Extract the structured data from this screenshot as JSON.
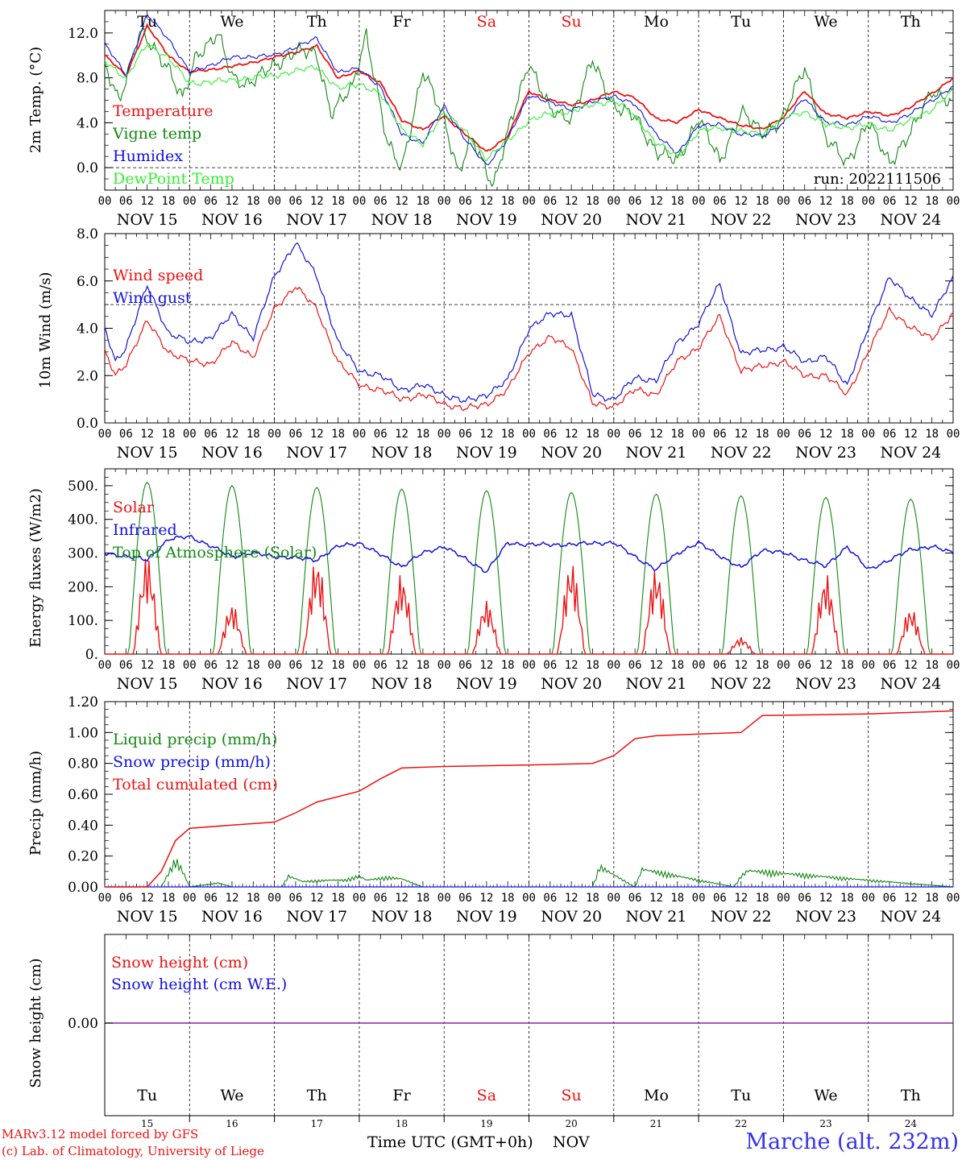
{
  "colors": {
    "red": "#ee1111",
    "dark_green": "#118811",
    "blue": "#1111dd",
    "light_green": "#33ee33",
    "purple": "#882299"
  },
  "days_top": [
    {
      "label": "Tu",
      "weekend": false
    },
    {
      "label": "We",
      "weekend": false
    },
    {
      "label": "Th",
      "weekend": false
    },
    {
      "label": "Fr",
      "weekend": false
    },
    {
      "label": "Sa",
      "weekend": true
    },
    {
      "label": "Su",
      "weekend": true
    },
    {
      "label": "Mo",
      "weekend": false
    },
    {
      "label": "Tu",
      "weekend": false
    },
    {
      "label": "We",
      "weekend": false
    },
    {
      "label": "Th",
      "weekend": false
    }
  ],
  "date_labels": [
    "NOV 15",
    "NOV 16",
    "NOV 17",
    "NOV 18",
    "NOV 19",
    "NOV 20",
    "NOV 21",
    "NOV 22",
    "NOV 23",
    "NOV 24"
  ],
  "hour_labels": [
    "00",
    "06",
    "12",
    "18"
  ],
  "day_numbers": [
    "15",
    "16",
    "17",
    "18",
    "19",
    "20",
    "21",
    "22",
    "23",
    "24"
  ],
  "footer": {
    "credit_line1": "MARv3.12 model forced by GFS",
    "credit_line2": "(c) Lab. of Climatology, University of Liege",
    "xlabel": "Time UTC (GMT+0h)",
    "month": "NOV",
    "station": "Marche (alt. 232m)"
  },
  "chart_data": [
    {
      "type": "line",
      "ylabel": "2m Temp. (°C)",
      "ylim": [
        -2.0,
        14.0
      ],
      "yticks": [
        "0.0",
        "4.0",
        "8.0",
        "12.0"
      ],
      "reference_line": 0.0,
      "run_label": "run: 2022111506",
      "x_unit": "hours since NOV 15 00 UTC",
      "series": [
        {
          "name": "Temperature",
          "color": "red",
          "x": [
            0,
            6,
            12,
            18,
            24,
            36,
            48,
            60,
            66,
            72,
            78,
            84,
            90,
            96,
            102,
            108,
            114,
            120,
            126,
            132,
            138,
            144,
            150,
            156,
            162,
            168,
            174,
            180,
            186,
            192,
            198,
            204,
            210,
            216,
            222,
            228,
            234,
            240
          ],
          "values": [
            10.0,
            8.2,
            12.6,
            10.0,
            8.5,
            9.0,
            9.8,
            10.8,
            8.0,
            8.6,
            7.6,
            4.2,
            3.4,
            4.6,
            3.0,
            1.4,
            2.8,
            6.8,
            6.0,
            5.6,
            6.0,
            6.8,
            6.2,
            4.4,
            4.0,
            5.2,
            4.4,
            3.8,
            3.4,
            4.5,
            6.8,
            4.8,
            4.4,
            5.0,
            4.6,
            5.4,
            6.6,
            8.0
          ]
        },
        {
          "name": "Vigne temp",
          "color": "dark_green",
          "x": [
            0,
            4,
            10,
            14,
            18,
            22,
            26,
            32,
            36,
            40,
            48,
            54,
            60,
            64,
            70,
            74,
            80,
            84,
            90,
            96,
            100,
            104,
            110,
            114,
            120,
            126,
            132,
            138,
            144,
            150,
            156,
            162,
            168,
            174,
            180,
            186,
            192,
            198,
            204,
            210,
            216,
            222,
            228,
            234,
            240
          ],
          "values": [
            9.0,
            6.0,
            12.0,
            10.5,
            9.0,
            6.0,
            10.0,
            12.0,
            8.0,
            7.5,
            9.0,
            10.5,
            10.0,
            5.0,
            7.0,
            12.0,
            2.0,
            0.0,
            8.5,
            4.5,
            -0.5,
            2.5,
            -1.5,
            3.0,
            9.5,
            5.0,
            4.5,
            9.5,
            5.5,
            4.5,
            1.5,
            0.5,
            4.5,
            0.5,
            5.0,
            3.0,
            4.5,
            9.0,
            2.5,
            0.5,
            4.0,
            0.5,
            3.0,
            7.0,
            5.5
          ]
        },
        {
          "name": "Humidex",
          "color": "blue",
          "x": [
            0,
            6,
            12,
            18,
            24,
            36,
            48,
            60,
            66,
            72,
            78,
            84,
            90,
            96,
            102,
            108,
            114,
            120,
            126,
            132,
            138,
            144,
            150,
            156,
            162,
            168,
            174,
            180,
            186,
            192,
            198,
            204,
            210,
            216,
            222,
            228,
            234,
            240
          ],
          "values": [
            11.0,
            8.3,
            13.6,
            11.5,
            8.5,
            9.8,
            10.0,
            11.5,
            8.5,
            8.8,
            7.2,
            3.0,
            2.2,
            5.5,
            2.5,
            0.2,
            2.5,
            6.5,
            5.8,
            5.2,
            5.8,
            6.4,
            5.6,
            3.0,
            1.2,
            3.8,
            3.8,
            3.0,
            2.8,
            4.0,
            6.2,
            4.0,
            3.8,
            4.6,
            4.0,
            4.8,
            6.0,
            7.2
          ]
        },
        {
          "name": "DewPoint Temp",
          "color": "light_green",
          "x": [
            0,
            6,
            12,
            18,
            24,
            36,
            48,
            60,
            66,
            72,
            78,
            84,
            90,
            96,
            102,
            108,
            114,
            120,
            126,
            132,
            138,
            144,
            150,
            156,
            162,
            168,
            174,
            180,
            186,
            192,
            198,
            204,
            210,
            216,
            222,
            228,
            234,
            240
          ],
          "values": [
            9.5,
            8.0,
            11.0,
            9.8,
            7.5,
            7.8,
            8.2,
            9.0,
            7.0,
            7.5,
            6.5,
            3.5,
            2.0,
            5.0,
            3.2,
            0.8,
            2.4,
            4.2,
            4.8,
            5.0,
            5.6,
            6.0,
            4.6,
            2.2,
            1.0,
            3.2,
            3.6,
            3.2,
            3.0,
            4.4,
            5.0,
            3.8,
            3.6,
            3.8,
            3.4,
            4.2,
            5.2,
            6.8
          ]
        }
      ]
    },
    {
      "type": "line",
      "ylabel": "10m Wind (m/s)",
      "ylim": [
        0.0,
        8.0
      ],
      "yticks": [
        "0.0",
        "2.0",
        "4.0",
        "6.0",
        "8.0"
      ],
      "reference_line": 5.0,
      "x_unit": "hours since NOV 15 00 UTC",
      "series": [
        {
          "name": "Wind speed",
          "color": "red",
          "x": [
            0,
            3,
            6,
            12,
            18,
            24,
            30,
            36,
            42,
            48,
            54,
            60,
            66,
            72,
            78,
            84,
            90,
            96,
            102,
            108,
            114,
            120,
            126,
            132,
            138,
            144,
            150,
            156,
            162,
            168,
            174,
            180,
            186,
            192,
            198,
            204,
            210,
            216,
            222,
            228,
            234,
            240
          ],
          "values": [
            3.0,
            2.0,
            2.5,
            4.3,
            3.0,
            2.6,
            2.5,
            3.4,
            2.8,
            4.8,
            5.8,
            4.8,
            2.6,
            1.6,
            1.4,
            1.0,
            1.2,
            0.8,
            0.6,
            0.8,
            1.4,
            3.0,
            3.6,
            3.2,
            0.8,
            0.7,
            1.4,
            1.2,
            2.6,
            3.2,
            4.5,
            2.2,
            2.4,
            2.6,
            2.0,
            2.0,
            1.2,
            3.0,
            4.8,
            4.0,
            3.6,
            4.6
          ]
        },
        {
          "name": "Wind gust",
          "color": "blue",
          "x": [
            0,
            3,
            6,
            12,
            18,
            24,
            30,
            36,
            42,
            48,
            54,
            60,
            66,
            72,
            78,
            84,
            90,
            96,
            102,
            108,
            114,
            120,
            126,
            132,
            138,
            144,
            150,
            156,
            162,
            168,
            174,
            180,
            186,
            192,
            198,
            204,
            210,
            216,
            222,
            228,
            234,
            240
          ],
          "values": [
            4.0,
            2.6,
            3.2,
            5.8,
            3.8,
            3.4,
            3.6,
            4.6,
            3.6,
            6.2,
            7.6,
            6.2,
            3.4,
            2.2,
            2.0,
            1.4,
            1.6,
            1.2,
            0.9,
            1.2,
            1.8,
            4.0,
            4.6,
            4.6,
            1.2,
            1.0,
            1.9,
            1.8,
            3.4,
            4.2,
            5.9,
            2.9,
            3.1,
            3.2,
            2.6,
            2.8,
            1.6,
            4.0,
            6.2,
            5.2,
            4.6,
            6.1
          ]
        }
      ]
    },
    {
      "type": "line",
      "ylabel": "Energy fluxes (W/m2)",
      "ylim": [
        0,
        550
      ],
      "yticks": [
        "0.",
        "100.",
        "200.",
        "300.",
        "400.",
        "500."
      ],
      "x_unit": "hours since NOV 15 00 UTC",
      "solar_day_peaks": [
        300,
        150,
        290,
        240,
        160,
        280,
        260,
        50,
        240,
        140
      ],
      "toa_day_peaks": [
        510,
        500,
        495,
        490,
        485,
        480,
        475,
        470,
        465,
        460
      ],
      "series": [
        {
          "name": "Solar",
          "color": "red"
        },
        {
          "name": "Infrared",
          "color": "blue",
          "x": [
            0,
            12,
            18,
            24,
            36,
            42,
            48,
            60,
            66,
            72,
            84,
            90,
            96,
            108,
            114,
            120,
            132,
            138,
            144,
            156,
            162,
            168,
            180,
            186,
            192,
            204,
            210,
            216,
            228,
            234,
            240
          ],
          "values": [
            300,
            280,
            340,
            350,
            290,
            300,
            290,
            280,
            320,
            330,
            260,
            300,
            320,
            245,
            330,
            325,
            325,
            330,
            330,
            250,
            300,
            330,
            255,
            310,
            300,
            260,
            320,
            250,
            310,
            320,
            300
          ]
        },
        {
          "name": "Top of Atmosphere (Solar)",
          "color": "dark_green"
        }
      ]
    },
    {
      "type": "line",
      "ylabel": "Precip (mm/h)",
      "ylim": [
        0.0,
        1.2
      ],
      "yticks": [
        "0.00",
        "0.20",
        "0.40",
        "0.60",
        "0.80",
        "1.00",
        "1.20"
      ],
      "x_unit": "hours since NOV 15 00 UTC",
      "series": [
        {
          "name": "Liquid precip (mm/h)",
          "color": "dark_green",
          "x": [
            0,
            16,
            20,
            22,
            24,
            32,
            36,
            50,
            52,
            56,
            64,
            68,
            72,
            74,
            80,
            84,
            90,
            138,
            140,
            150,
            152,
            178,
            180,
            182,
            240
          ],
          "values": [
            0.0,
            0.0,
            0.2,
            0.12,
            0.0,
            0.03,
            0.0,
            0.0,
            0.08,
            0.04,
            0.05,
            0.05,
            0.08,
            0.05,
            0.07,
            0.06,
            0.0,
            0.0,
            0.15,
            0.0,
            0.13,
            0.0,
            0.08,
            0.12,
            0.0
          ]
        },
        {
          "name": "Snow precip (mm/h)",
          "color": "blue",
          "x": [
            0,
            240
          ],
          "values": [
            0.0,
            0.0
          ]
        },
        {
          "name": "Total cumulated (cm)",
          "color": "red",
          "x": [
            0,
            12,
            16,
            20,
            24,
            36,
            48,
            54,
            60,
            72,
            78,
            84,
            96,
            120,
            138,
            144,
            150,
            156,
            168,
            180,
            186,
            216,
            240
          ],
          "values": [
            0.0,
            0.0,
            0.1,
            0.3,
            0.38,
            0.4,
            0.42,
            0.48,
            0.55,
            0.62,
            0.7,
            0.77,
            0.78,
            0.79,
            0.8,
            0.85,
            0.96,
            0.98,
            0.99,
            1.0,
            1.11,
            1.12,
            1.14
          ]
        }
      ]
    },
    {
      "type": "line",
      "ylabel": "Snow height (cm)",
      "yticks": [
        "0.00"
      ],
      "series": [
        {
          "name": "Snow height (cm)",
          "color": "red",
          "values": [
            0.0,
            0.0
          ]
        },
        {
          "name": "Snow height (cm W.E.)",
          "color": "blue",
          "values": [
            0.0,
            0.0
          ]
        }
      ]
    }
  ]
}
